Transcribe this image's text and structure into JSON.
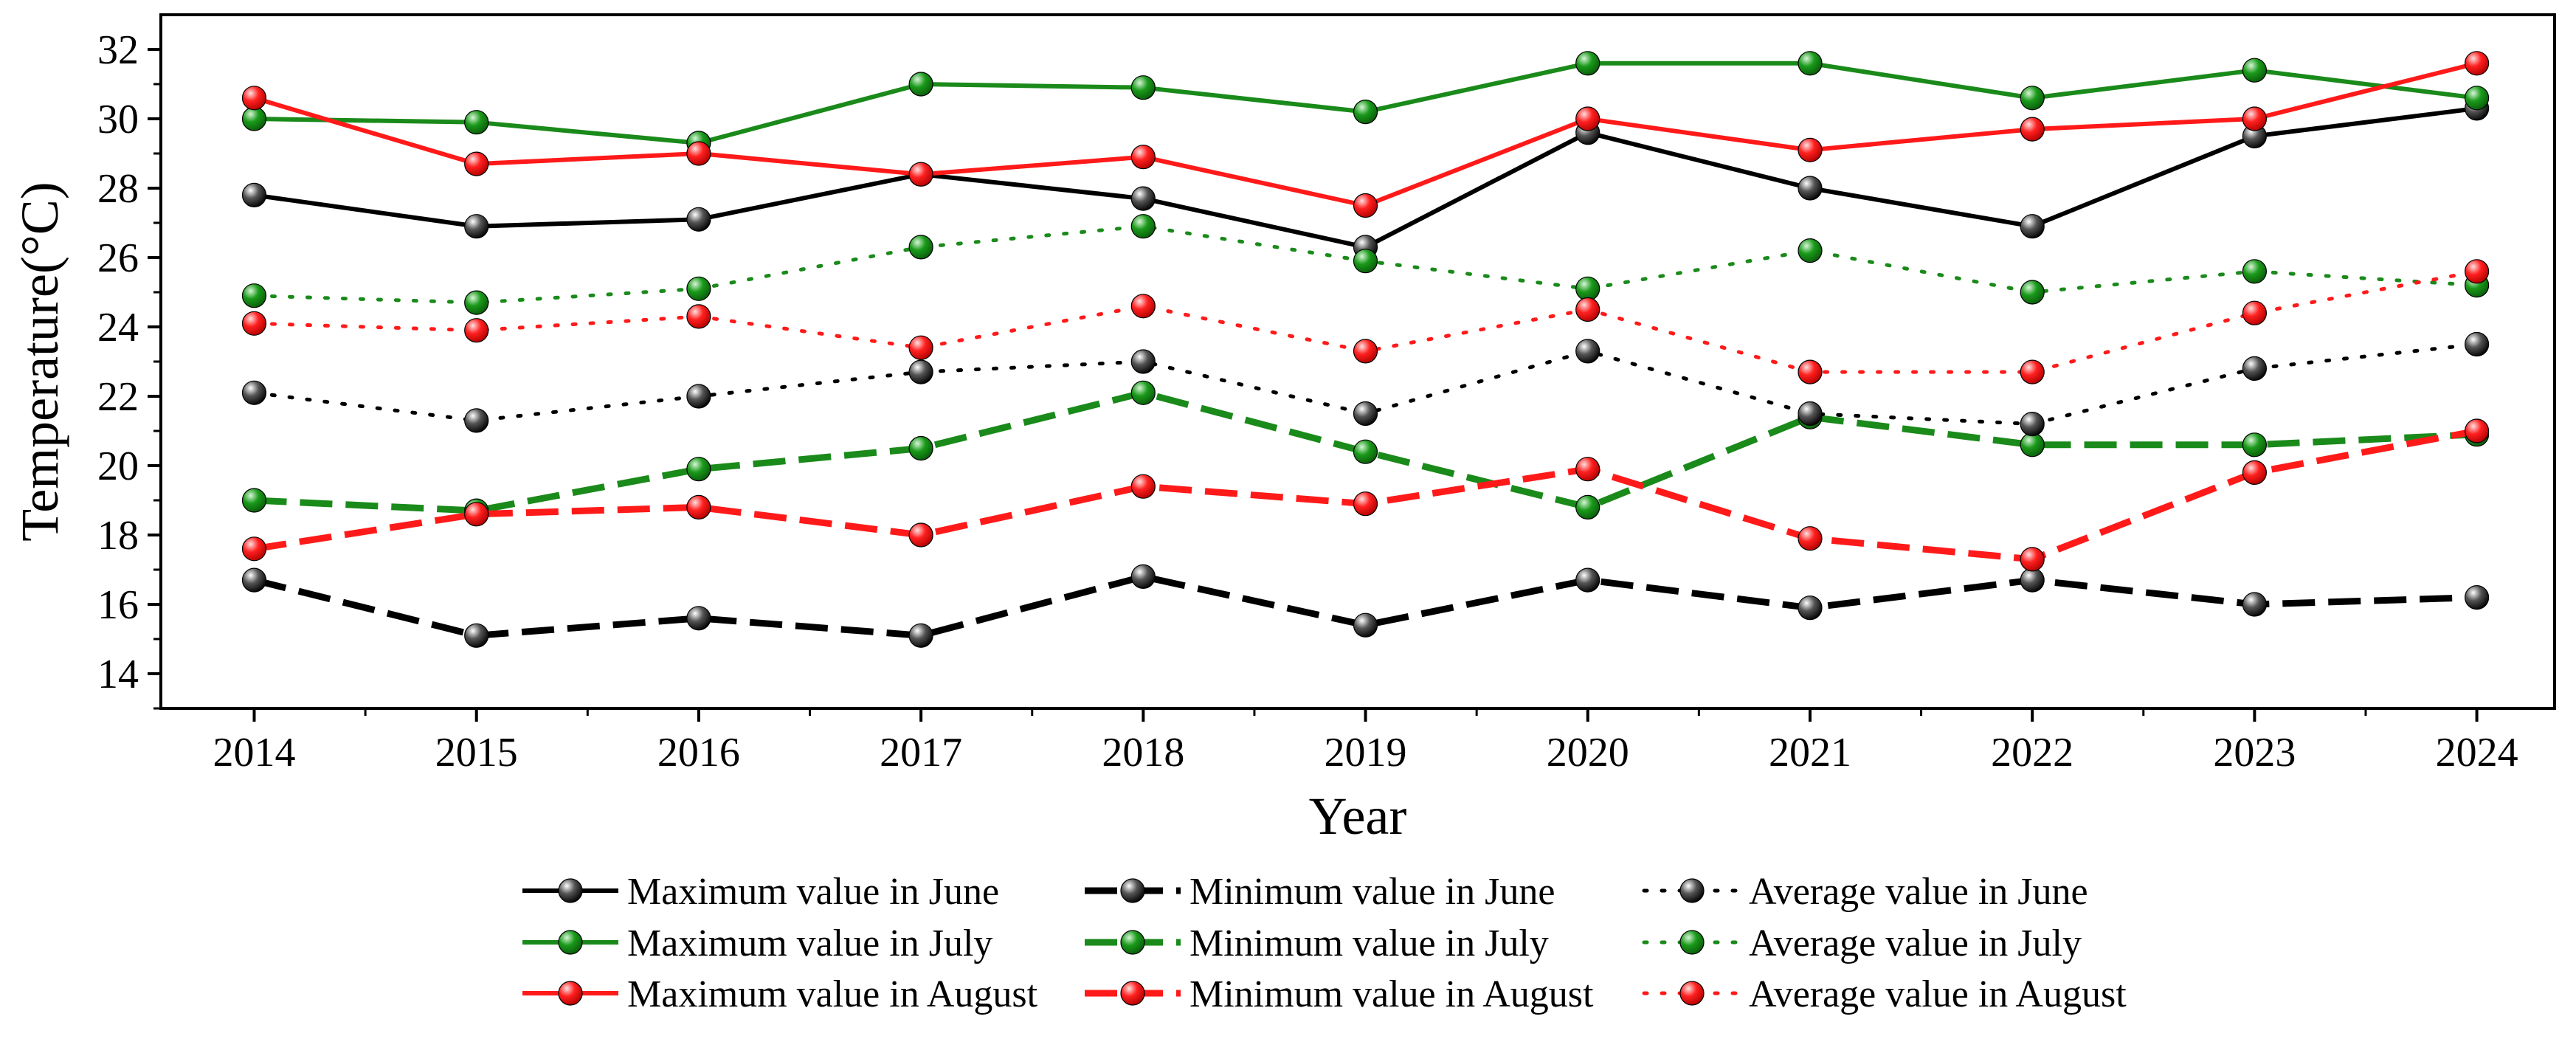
{
  "chart_data": {
    "type": "line",
    "xlabel": "Year",
    "ylabel": "Temperature(°C)",
    "ylim": [
      13,
      33
    ],
    "xlim": [
      2013.58,
      2024.35
    ],
    "x": [
      2014,
      2015,
      2016,
      2017,
      2018,
      2019,
      2020,
      2021,
      2022,
      2023,
      2024
    ],
    "x_tick_labels": [
      "2014",
      "2015",
      "2016",
      "2017",
      "2018",
      "2019",
      "2020",
      "2021",
      "2022",
      "2023",
      "2024"
    ],
    "y_ticks": [
      14,
      16,
      18,
      20,
      22,
      24,
      26,
      28,
      30,
      32
    ],
    "y_tick_labels": [
      "14",
      "16",
      "18",
      "20",
      "22",
      "24",
      "26",
      "28",
      "30",
      "32"
    ],
    "grid": false,
    "legend_position": "bottom",
    "series": [
      {
        "name": "Maximum value in June",
        "color": "#000000",
        "style": "solid",
        "values": [
          27.8,
          26.9,
          27.1,
          28.4,
          27.7,
          26.3,
          29.6,
          28.0,
          26.9,
          29.5,
          30.3
        ]
      },
      {
        "name": "Maximum value in July",
        "color": "#1a8a1a",
        "style": "solid",
        "values": [
          30.0,
          29.9,
          29.3,
          31.0,
          30.9,
          30.2,
          31.6,
          31.6,
          30.6,
          31.4,
          30.6
        ]
      },
      {
        "name": "Maximum value in August",
        "color": "#ff1a1a",
        "style": "solid",
        "values": [
          30.6,
          28.7,
          29.0,
          28.4,
          28.9,
          27.5,
          30.0,
          29.1,
          29.7,
          30.0,
          31.6
        ]
      },
      {
        "name": "Minimum value in June",
        "color": "#000000",
        "style": "dashed",
        "values": [
          16.7,
          15.1,
          15.6,
          15.1,
          16.8,
          15.4,
          16.7,
          15.9,
          16.7,
          16.0,
          16.2
        ]
      },
      {
        "name": "Minimum value in July",
        "color": "#1a8a1a",
        "style": "dashed",
        "values": [
          19.0,
          18.7,
          19.9,
          20.5,
          22.1,
          20.4,
          18.8,
          21.4,
          20.6,
          20.6,
          20.9
        ]
      },
      {
        "name": "Minimum value in August",
        "color": "#ff1a1a",
        "style": "dashed",
        "values": [
          17.6,
          18.6,
          18.8,
          18.0,
          19.4,
          18.9,
          19.9,
          17.9,
          17.3,
          19.8,
          21.0
        ]
      },
      {
        "name": "Average value in June",
        "color": "#000000",
        "style": "dotted",
        "values": [
          22.1,
          21.3,
          22.0,
          22.7,
          23.0,
          21.5,
          23.3,
          21.5,
          21.2,
          22.8,
          23.5
        ]
      },
      {
        "name": "Average value in July",
        "color": "#1a8a1a",
        "style": "dotted",
        "values": [
          24.9,
          24.7,
          25.1,
          26.3,
          26.9,
          25.9,
          25.1,
          26.2,
          25.0,
          25.6,
          25.2
        ]
      },
      {
        "name": "Average value in August",
        "color": "#ff1a1a",
        "style": "dotted",
        "values": [
          24.1,
          23.9,
          24.3,
          23.4,
          24.6,
          23.3,
          24.5,
          22.7,
          22.7,
          24.4,
          25.6
        ]
      }
    ]
  }
}
